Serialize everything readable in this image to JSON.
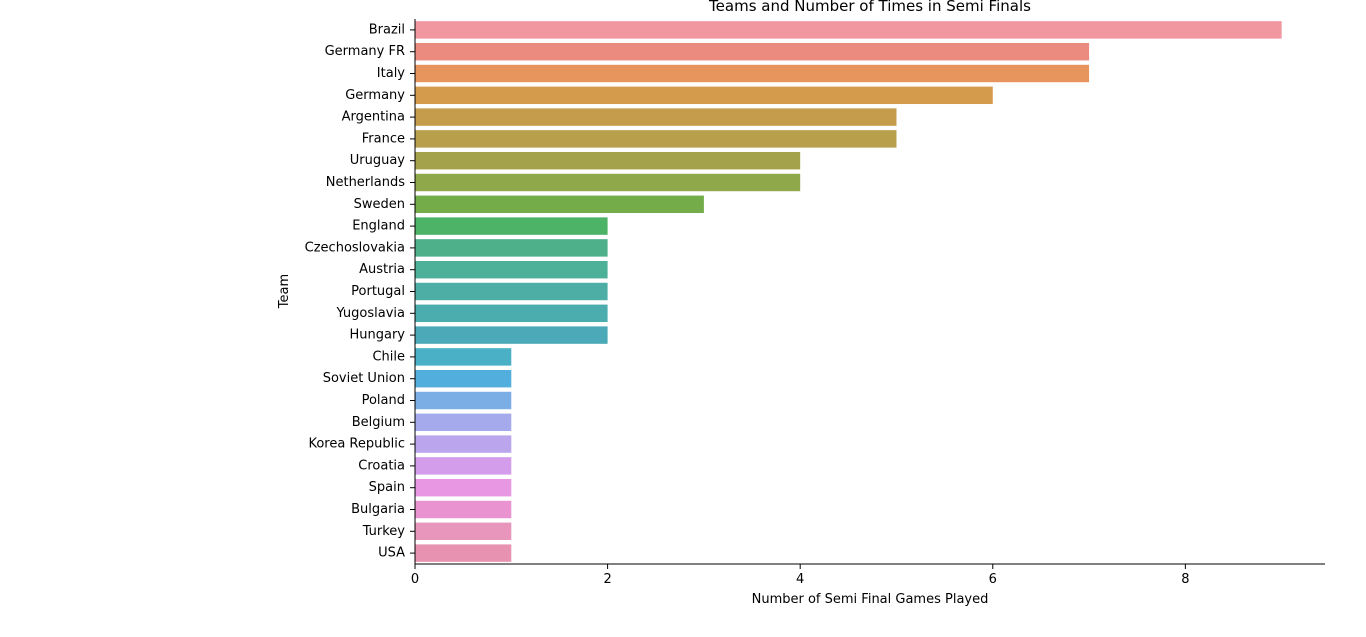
{
  "chart_data": {
    "type": "bar",
    "orientation": "horizontal",
    "title": "Teams and Number of Times in Semi Finals",
    "xlabel": "Number of Semi Final Games Played",
    "ylabel": "Team",
    "xlim": [
      0,
      9.45
    ],
    "xticks": [
      0,
      2,
      4,
      6,
      8
    ],
    "grid": false,
    "categories": [
      "Brazil",
      "Germany FR",
      "Italy",
      "Germany",
      "Argentina",
      "France",
      "Uruguay",
      "Netherlands",
      "Sweden",
      "England",
      "Czechoslovakia",
      "Austria",
      "Portugal",
      "Yugoslavia",
      "Hungary",
      "Chile",
      "Soviet Union",
      "Poland",
      "Belgium",
      "Korea Republic",
      "Croatia",
      "Spain",
      "Bulgaria",
      "Turkey",
      "USA"
    ],
    "values": [
      9,
      7,
      7,
      6,
      5,
      5,
      4,
      4,
      3,
      2,
      2,
      2,
      2,
      2,
      2,
      1,
      1,
      1,
      1,
      1,
      1,
      1,
      1,
      1,
      1
    ],
    "colors": [
      "#f0979f",
      "#eb8a7e",
      "#e7955c",
      "#d59b4c",
      "#c59c4b",
      "#b89f4b",
      "#a4a24a",
      "#8ea84a",
      "#74ac49",
      "#4db366",
      "#4db08b",
      "#4db099",
      "#4caea4",
      "#4badad",
      "#4caab8",
      "#4ab0c6",
      "#52aedc",
      "#7caee6",
      "#a5aaec",
      "#bba6ee",
      "#d49deb",
      "#e897e3",
      "#e994d1",
      "#e896bc",
      "#e892b2"
    ]
  }
}
